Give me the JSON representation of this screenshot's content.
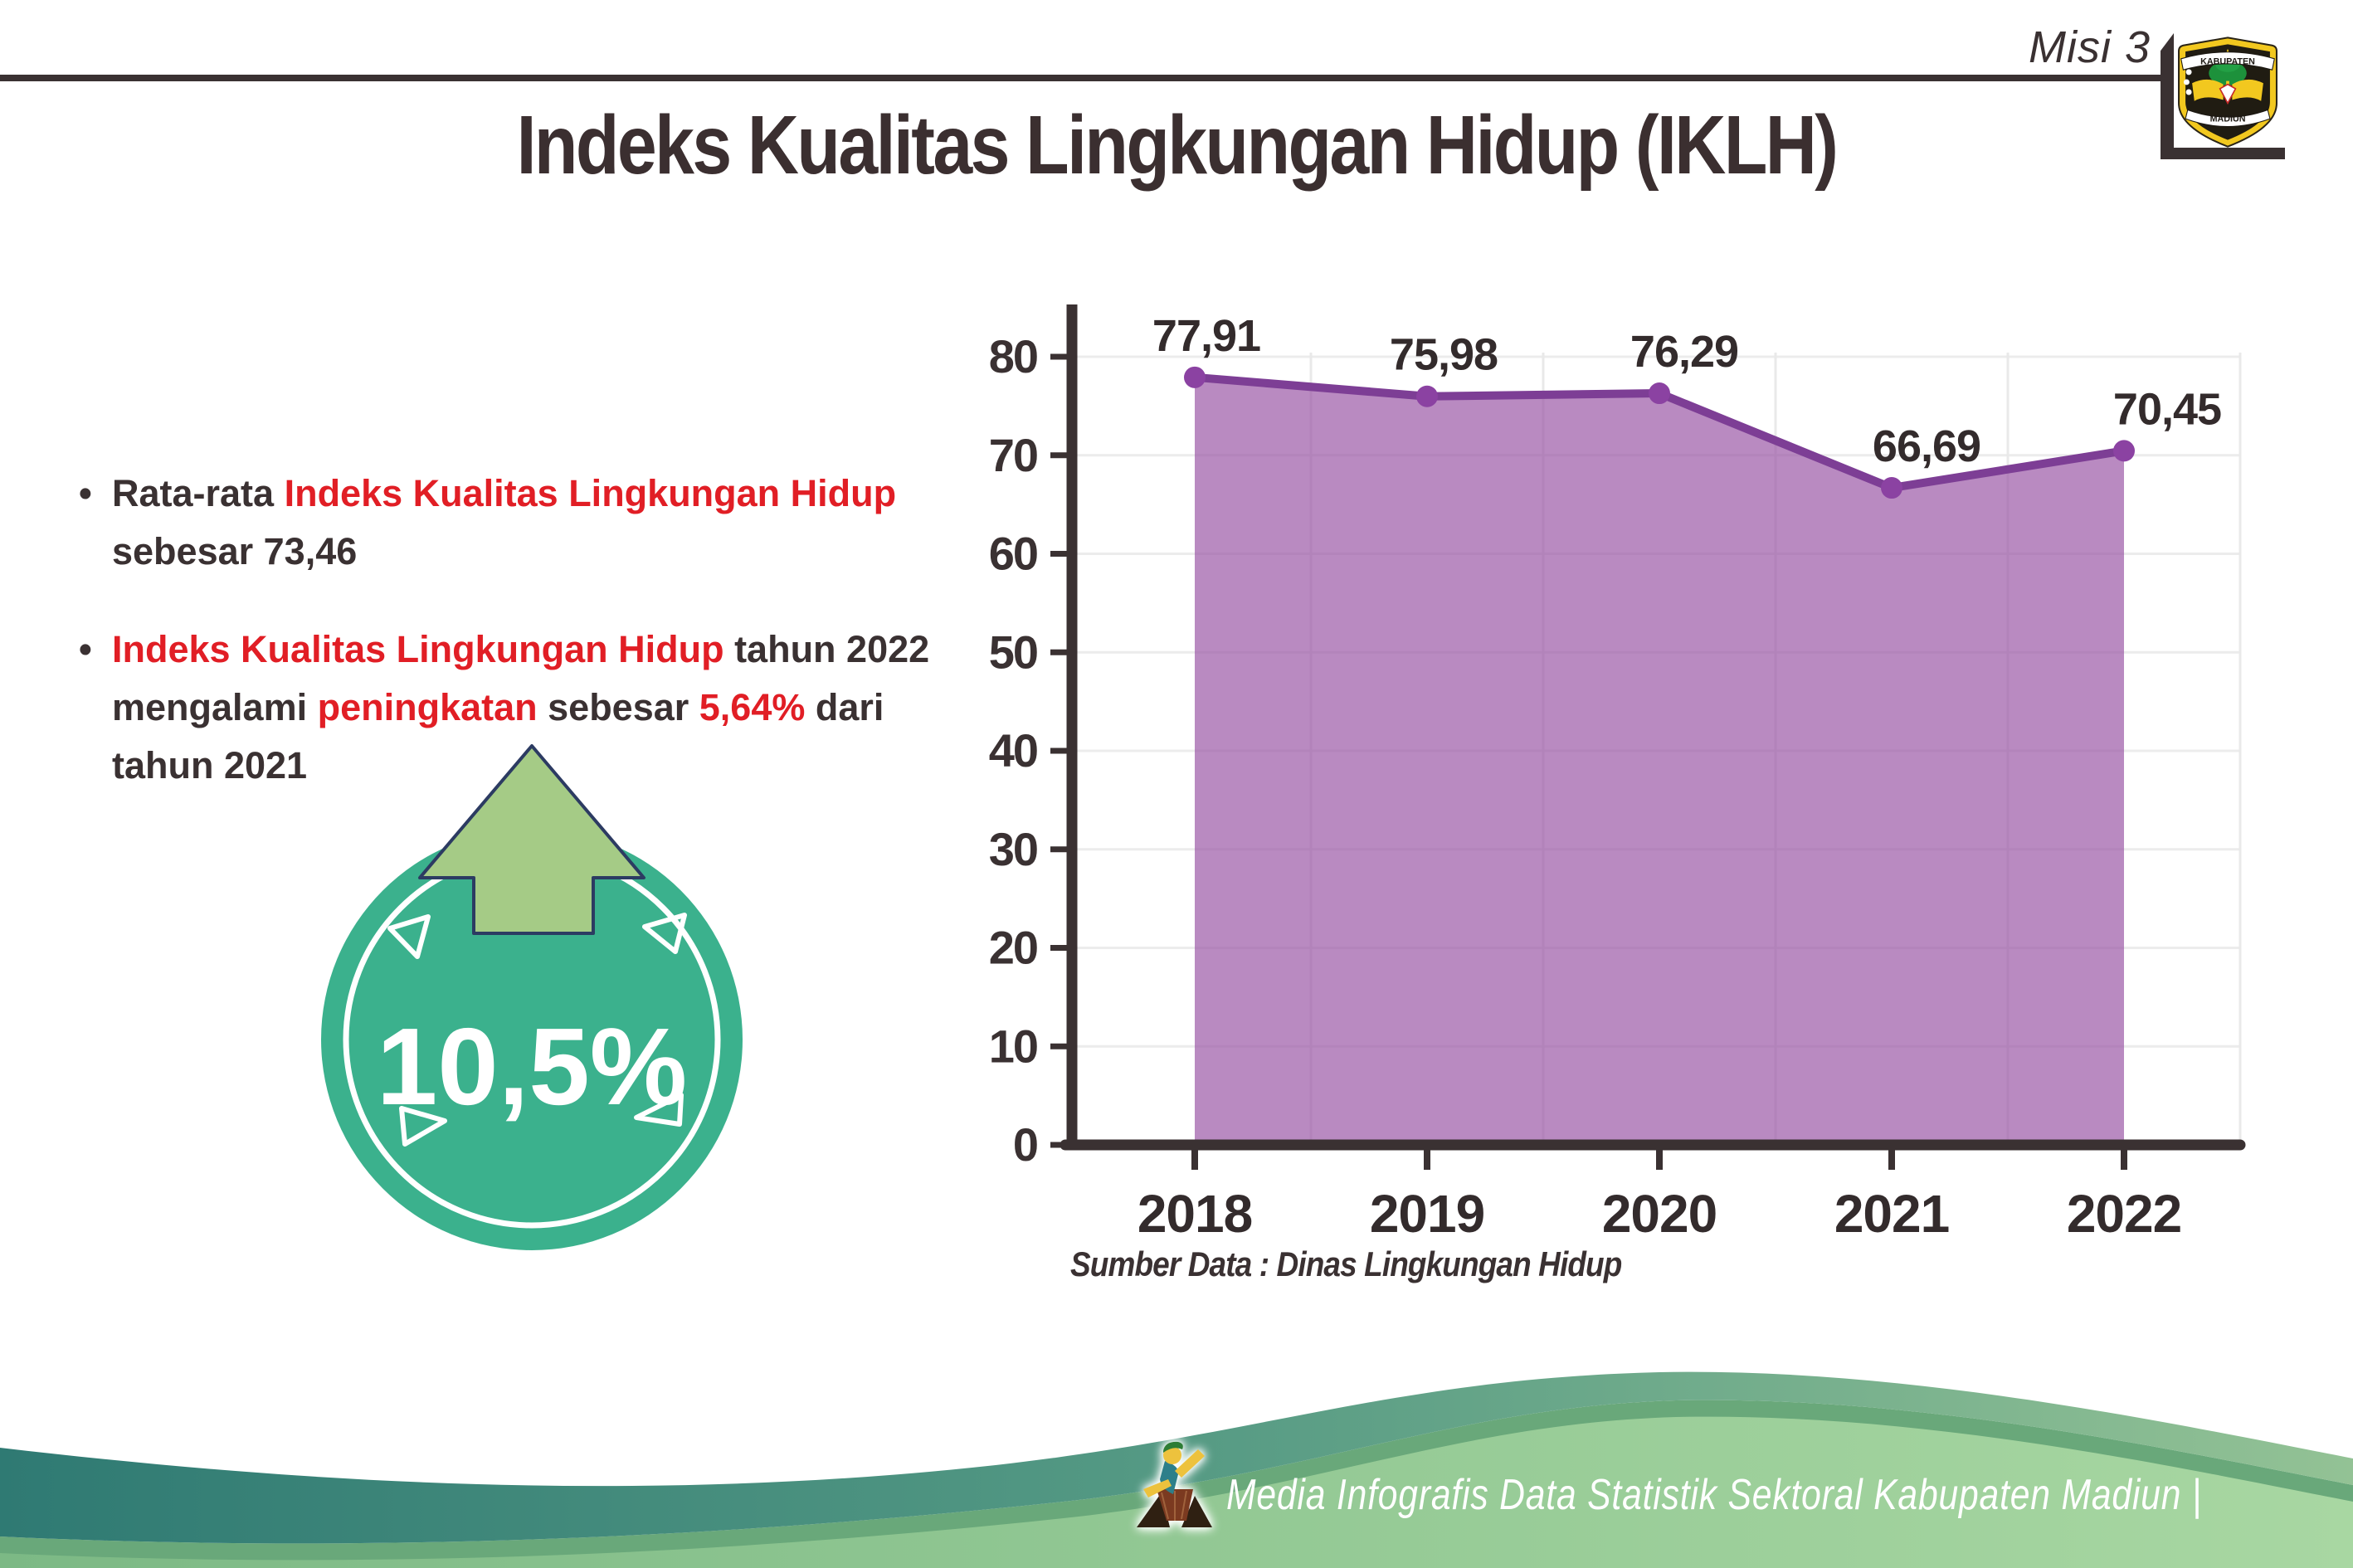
{
  "header": {
    "misi_label": "Misi 3",
    "title": "Indeks Kualitas Lingkungan Hidup (IKLH)",
    "logo": {
      "top_text": "KABUPATEN",
      "bottom_text": "MADIUN"
    }
  },
  "bullets": {
    "dot": "•",
    "b1": {
      "p1": "Rata-rata ",
      "p2": "Indeks Kualitas Lingkungan Hidup",
      "p3": "sebesar 73,46"
    },
    "b2": {
      "p1": "Indeks Kualitas Lingkungan Hidup",
      "p2": " tahun 2022",
      "p3": "mengalami ",
      "p4": "peningkatan",
      "p5": " sebesar ",
      "p6": "5,64%",
      "p7": " dari",
      "p8": "tahun 2021"
    }
  },
  "badge": {
    "value": "10,5%",
    "arrow_icon": "up-arrow"
  },
  "chart_data": {
    "type": "area",
    "title": "",
    "xlabel": "",
    "ylabel": "",
    "categories": [
      "2018",
      "2019",
      "2020",
      "2021",
      "2022"
    ],
    "values": [
      77.91,
      75.98,
      76.29,
      66.69,
      70.45
    ],
    "point_labels": [
      "77,91",
      "75,98",
      "76,29",
      "66,69",
      "70,45"
    ],
    "label_dx": [
      14,
      20,
      30,
      42,
      52
    ],
    "ylim": [
      0,
      80
    ],
    "yticks": [
      0,
      10,
      20,
      30,
      40,
      50,
      60,
      70,
      80
    ],
    "grid": true,
    "legend": false,
    "line_color": "#7d3e95",
    "point_color": "#8b42a2",
    "fill_color": "#954da1",
    "fill_opacity": 0.66
  },
  "source_note": "Sumber Data : Dinas Lingkungan Hidup",
  "footer": {
    "caption": "Media Infografis Data Statistik Sektoral Kabupaten Madiun |",
    "mascot_icon": "dancer-mascot"
  },
  "colors": {
    "accent_red": "#e11e25",
    "text_dark": "#3a3132",
    "chart_line": "#7d3e95",
    "chart_fill_rendered": "#b786bf",
    "badge_teal": "#3bb18d",
    "arrow_green": "#a5cb86",
    "arrow_outline_navy": "#2c3b62",
    "footer_teal": "#2f7a73",
    "footer_rim_green": "#69a87a",
    "footer_light_green": "#8cc489"
  }
}
